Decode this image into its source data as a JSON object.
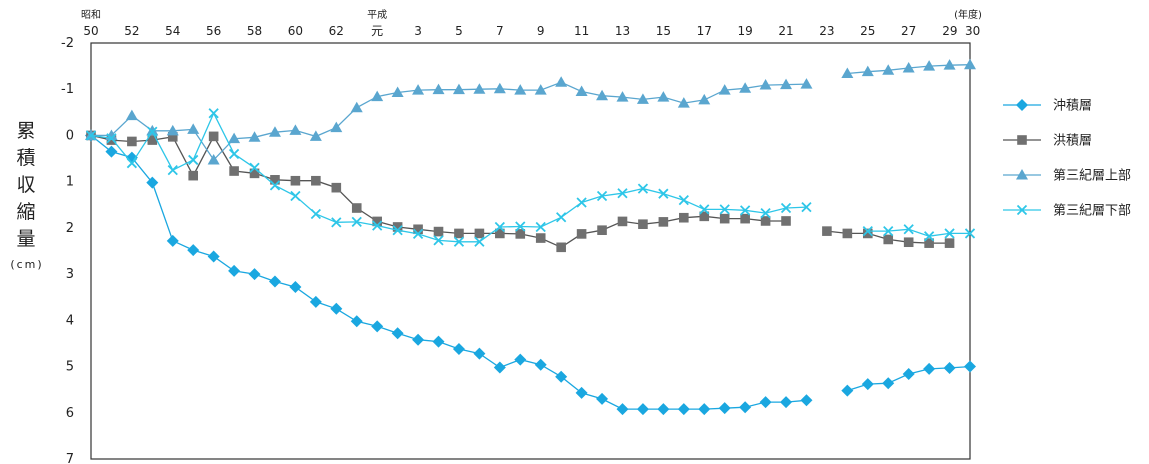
{
  "chart_data": {
    "type": "line",
    "ylabel": "累積収縮量",
    "yunit": "(cm)",
    "ylim": [
      -2,
      7
    ],
    "y_inverted": true,
    "yticks": [
      -2,
      -1,
      0,
      1,
      2,
      3,
      4,
      5,
      6,
      7
    ],
    "x": [
      1975,
      1976,
      1977,
      1978,
      1979,
      1980,
      1981,
      1982,
      1983,
      1984,
      1985,
      1986,
      1987,
      1988,
      1989,
      1990,
      1991,
      1992,
      1993,
      1994,
      1995,
      1996,
      1997,
      1998,
      1999,
      2000,
      2001,
      2002,
      2003,
      2004,
      2005,
      2006,
      2007,
      2008,
      2009,
      2010,
      2011,
      2012,
      2013,
      2014,
      2015,
      2016,
      2017,
      2018
    ],
    "xticks": [
      {
        "x": 1975,
        "label": "50",
        "era": "昭和"
      },
      {
        "x": 1977,
        "label": "52"
      },
      {
        "x": 1979,
        "label": "54"
      },
      {
        "x": 1981,
        "label": "56"
      },
      {
        "x": 1983,
        "label": "58"
      },
      {
        "x": 1985,
        "label": "60"
      },
      {
        "x": 1987,
        "label": "62"
      },
      {
        "x": 1989,
        "label": "元",
        "era": "平成"
      },
      {
        "x": 1991,
        "label": "3"
      },
      {
        "x": 1993,
        "label": "5"
      },
      {
        "x": 1995,
        "label": "7"
      },
      {
        "x": 1997,
        "label": "9"
      },
      {
        "x": 1999,
        "label": "11"
      },
      {
        "x": 2001,
        "label": "13"
      },
      {
        "x": 2003,
        "label": "15"
      },
      {
        "x": 2005,
        "label": "17"
      },
      {
        "x": 2007,
        "label": "19"
      },
      {
        "x": 2009,
        "label": "21"
      },
      {
        "x": 2011,
        "label": "23"
      },
      {
        "x": 2013,
        "label": "25"
      },
      {
        "x": 2015,
        "label": "27"
      },
      {
        "x": 2017,
        "label": "29"
      },
      {
        "x": 2018,
        "label": "30"
      }
    ],
    "xunit": "(年度)",
    "series": [
      {
        "name": "沖積層",
        "marker": "diamond",
        "color": "#1aa7e0",
        "values": [
          0,
          0.35,
          0.48,
          1.02,
          2.28,
          2.48,
          2.62,
          2.93,
          3.0,
          3.16,
          3.28,
          3.6,
          3.75,
          4.02,
          4.13,
          4.28,
          4.42,
          4.46,
          4.62,
          4.72,
          5.02,
          4.85,
          4.96,
          5.22,
          5.57,
          5.7,
          5.92,
          5.92,
          5.92,
          5.92,
          5.92,
          5.9,
          5.88,
          5.77,
          5.77,
          5.73,
          null,
          5.52,
          5.38,
          5.36,
          5.16,
          5.05,
          5.03,
          5.0
        ]
      },
      {
        "name": "洪積層",
        "marker": "square",
        "color": "#707070",
        "values": [
          0,
          0.1,
          0.13,
          0.1,
          0.03,
          0.87,
          0.02,
          0.77,
          0.82,
          0.96,
          0.98,
          0.98,
          1.13,
          1.57,
          1.86,
          1.98,
          2.03,
          2.08,
          2.12,
          2.12,
          2.12,
          2.13,
          2.22,
          2.42,
          2.13,
          2.05,
          1.86,
          1.92,
          1.87,
          1.78,
          1.75,
          1.8,
          1.8,
          1.85,
          1.85,
          null,
          2.07,
          2.12,
          2.12,
          2.25,
          2.31,
          2.33,
          2.33,
          null
        ]
      },
      {
        "name": "第三紀層上部",
        "marker": "triangle",
        "color": "#5aa6cf",
        "values": [
          0,
          0,
          -0.43,
          -0.1,
          -0.1,
          -0.13,
          0.53,
          0.07,
          0.04,
          -0.07,
          -0.11,
          0.02,
          -0.17,
          -0.6,
          -0.84,
          -0.93,
          -0.98,
          -0.99,
          -0.99,
          -1.0,
          -1.01,
          -0.98,
          -0.98,
          -1.15,
          -0.95,
          -0.86,
          -0.83,
          -0.78,
          -0.83,
          -0.7,
          -0.77,
          -0.98,
          -1.02,
          -1.09,
          -1.1,
          -1.11,
          null,
          -1.34,
          -1.38,
          -1.41,
          -1.46,
          -1.5,
          -1.52,
          -1.53
        ]
      },
      {
        "name": "第三紀層下部",
        "marker": "cross",
        "color": "#2ec6e8",
        "values": [
          0,
          0.06,
          0.6,
          -0.08,
          0.75,
          0.53,
          -0.48,
          0.4,
          0.7,
          1.08,
          1.31,
          1.7,
          1.88,
          1.87,
          1.95,
          2.05,
          2.13,
          2.27,
          2.3,
          2.3,
          1.98,
          1.97,
          1.98,
          1.77,
          1.45,
          1.31,
          1.25,
          1.15,
          1.26,
          1.4,
          1.6,
          1.6,
          1.62,
          1.68,
          1.57,
          1.55,
          null,
          null,
          2.07,
          2.07,
          2.03,
          2.18,
          2.12,
          2.12
        ]
      }
    ],
    "legend_position": "right"
  }
}
